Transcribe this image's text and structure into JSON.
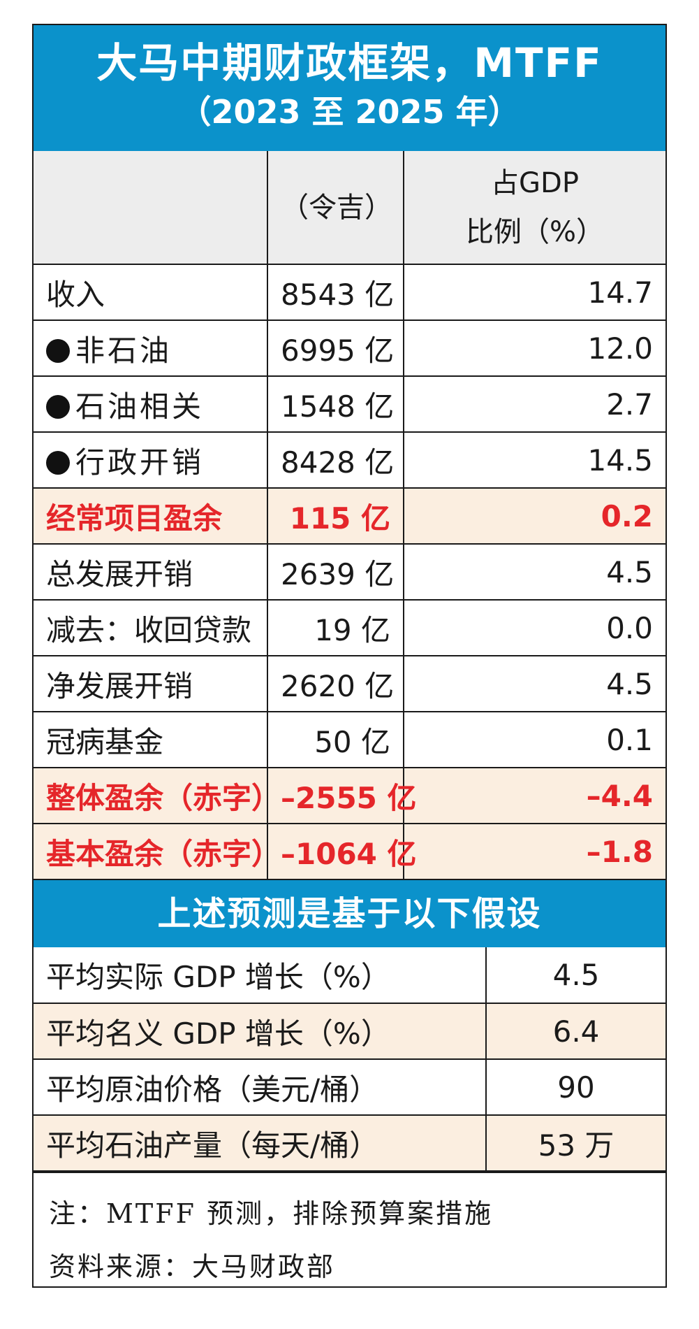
{
  "header": {
    "title": "大马中期财政框架，MTFF",
    "subtitle": "（2023 至 2025 年）"
  },
  "columns": {
    "blank": "",
    "amount": "（令吉）",
    "ratio_line1": "占GDP",
    "ratio_line2": "比例（%）"
  },
  "rows": [
    {
      "label": "收入",
      "amount": "8543 亿",
      "ratio": "14.7"
    },
    {
      "label": "非石油",
      "amount": "6995 亿",
      "ratio": "12.0"
    },
    {
      "label": "石油相关",
      "amount": "1548 亿",
      "ratio": "2.7"
    },
    {
      "label": "行政开销",
      "amount": "8428 亿",
      "ratio": "14.5"
    },
    {
      "label": "经常项目盈余",
      "amount": "115 亿",
      "ratio": "0.2"
    },
    {
      "label": "总发展开销",
      "amount": "2639 亿",
      "ratio": "4.5"
    },
    {
      "label": "减去：收回贷款",
      "amount": "19 亿",
      "ratio": "0.0"
    },
    {
      "label": "净发展开销",
      "amount": "2620 亿",
      "ratio": "4.5"
    },
    {
      "label": "冠病基金",
      "amount": "50 亿",
      "ratio": "0.1"
    },
    {
      "label": "整体盈余（赤字）",
      "amount": "–2555 亿",
      "ratio": "–4.4"
    },
    {
      "label": "基本盈余（赤字）",
      "amount": "–1064 亿",
      "ratio": "–1.8"
    }
  ],
  "assumptions": {
    "title": "上述预测是基于以下假设",
    "rows": [
      {
        "label": "平均实际 GDP 增长（%）",
        "value": "4.5"
      },
      {
        "label": "平均名义 GDP 增长（%）",
        "value": "6.4"
      },
      {
        "label": "平均原油价格（美元/桶）",
        "value": "90"
      },
      {
        "label": "平均石油产量（每天/桶）",
        "value": "53 万"
      }
    ]
  },
  "notes": {
    "note": "注：MTFF 预测，排除预算案措施",
    "source": "资料来源：大马财政部"
  },
  "colors": {
    "header_blue": "#0b92cb",
    "highlight_red": "#e5262a",
    "highlight_bg": "#fbeee0",
    "column_header_bg": "#ededed"
  }
}
